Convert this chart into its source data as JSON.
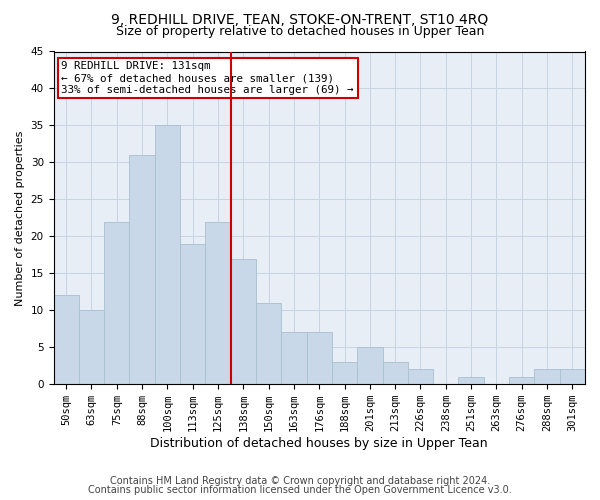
{
  "title1": "9, REDHILL DRIVE, TEAN, STOKE-ON-TRENT, ST10 4RQ",
  "title2": "Size of property relative to detached houses in Upper Tean",
  "xlabel": "Distribution of detached houses by size in Upper Tean",
  "ylabel": "Number of detached properties",
  "categories": [
    "50sqm",
    "63sqm",
    "75sqm",
    "88sqm",
    "100sqm",
    "113sqm",
    "125sqm",
    "138sqm",
    "150sqm",
    "163sqm",
    "176sqm",
    "188sqm",
    "201sqm",
    "213sqm",
    "226sqm",
    "238sqm",
    "251sqm",
    "263sqm",
    "276sqm",
    "288sqm",
    "301sqm"
  ],
  "values": [
    12,
    10,
    22,
    31,
    35,
    19,
    22,
    17,
    11,
    7,
    7,
    3,
    5,
    3,
    2,
    0,
    1,
    0,
    1,
    2,
    2
  ],
  "bar_color": "#c8d8e8",
  "bar_edgecolor": "#a8c0d0",
  "vline_x_idx": 7,
  "vline_color": "#cc0000",
  "annotation_text": "9 REDHILL DRIVE: 131sqm\n← 67% of detached houses are smaller (139)\n33% of semi-detached houses are larger (69) →",
  "annotation_box_color": "#ffffff",
  "annotation_box_edgecolor": "#cc0000",
  "ylim": [
    0,
    45
  ],
  "yticks": [
    0,
    5,
    10,
    15,
    20,
    25,
    30,
    35,
    40,
    45
  ],
  "grid_color": "#c8d4e4",
  "background_color": "#e8eef6",
  "footer1": "Contains HM Land Registry data © Crown copyright and database right 2024.",
  "footer2": "Contains public sector information licensed under the Open Government Licence v3.0.",
  "title1_fontsize": 10,
  "title2_fontsize": 9,
  "xlabel_fontsize": 9,
  "ylabel_fontsize": 8,
  "tick_fontsize": 7.5,
  "footer_fontsize": 7
}
